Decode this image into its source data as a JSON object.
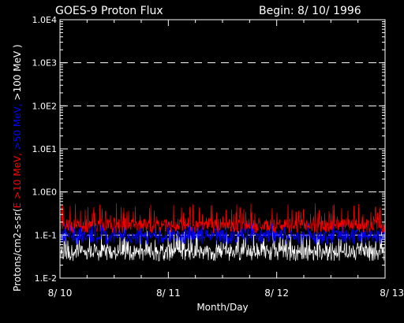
{
  "chart_data": {
    "type": "line",
    "title": "GOES-9 Proton Flux",
    "begin_label": "Begin: 8/ 10/ 1996",
    "xlabel": "Month/Day",
    "ylabel_parts": [
      {
        "text": "Protons/cm2-s-sr(",
        "color": "#ffffff"
      },
      {
        "text": "E >10 MeV,",
        "color": "#ff0000"
      },
      {
        "text": " >50 MeV,",
        "color": "#0000ff"
      },
      {
        "text": " >100 MeV )",
        "color": "#ffffff"
      }
    ],
    "y_scale": "log",
    "ylim": [
      0.01,
      10000
    ],
    "y_ticks": [
      {
        "value": 0.01,
        "label": "1.E-2"
      },
      {
        "value": 0.1,
        "label": "1.E-1"
      },
      {
        "value": 1,
        "label": "1.0E0"
      },
      {
        "value": 10,
        "label": "1.0E1"
      },
      {
        "value": 100,
        "label": "1.0E2"
      },
      {
        "value": 1000,
        "label": "1.0E3"
      },
      {
        "value": 10000,
        "label": "1.0E4"
      }
    ],
    "x_ticks": [
      "8/ 10",
      "8/ 11",
      "8/ 12",
      "8/ 13"
    ],
    "grid": "dashed horizontal at each decade",
    "series": [
      {
        "name": ">10 MeV",
        "color": "#ff0000",
        "typical": 0.18,
        "min": 0.11,
        "max": 0.55
      },
      {
        "name": ">50 MeV",
        "color": "#0000ff",
        "typical": 0.1,
        "min": 0.06,
        "max": 0.2
      },
      {
        "name": ">100 MeV",
        "color": "#ffffff",
        "typical": 0.045,
        "min": 0.025,
        "max": 0.13
      }
    ]
  }
}
